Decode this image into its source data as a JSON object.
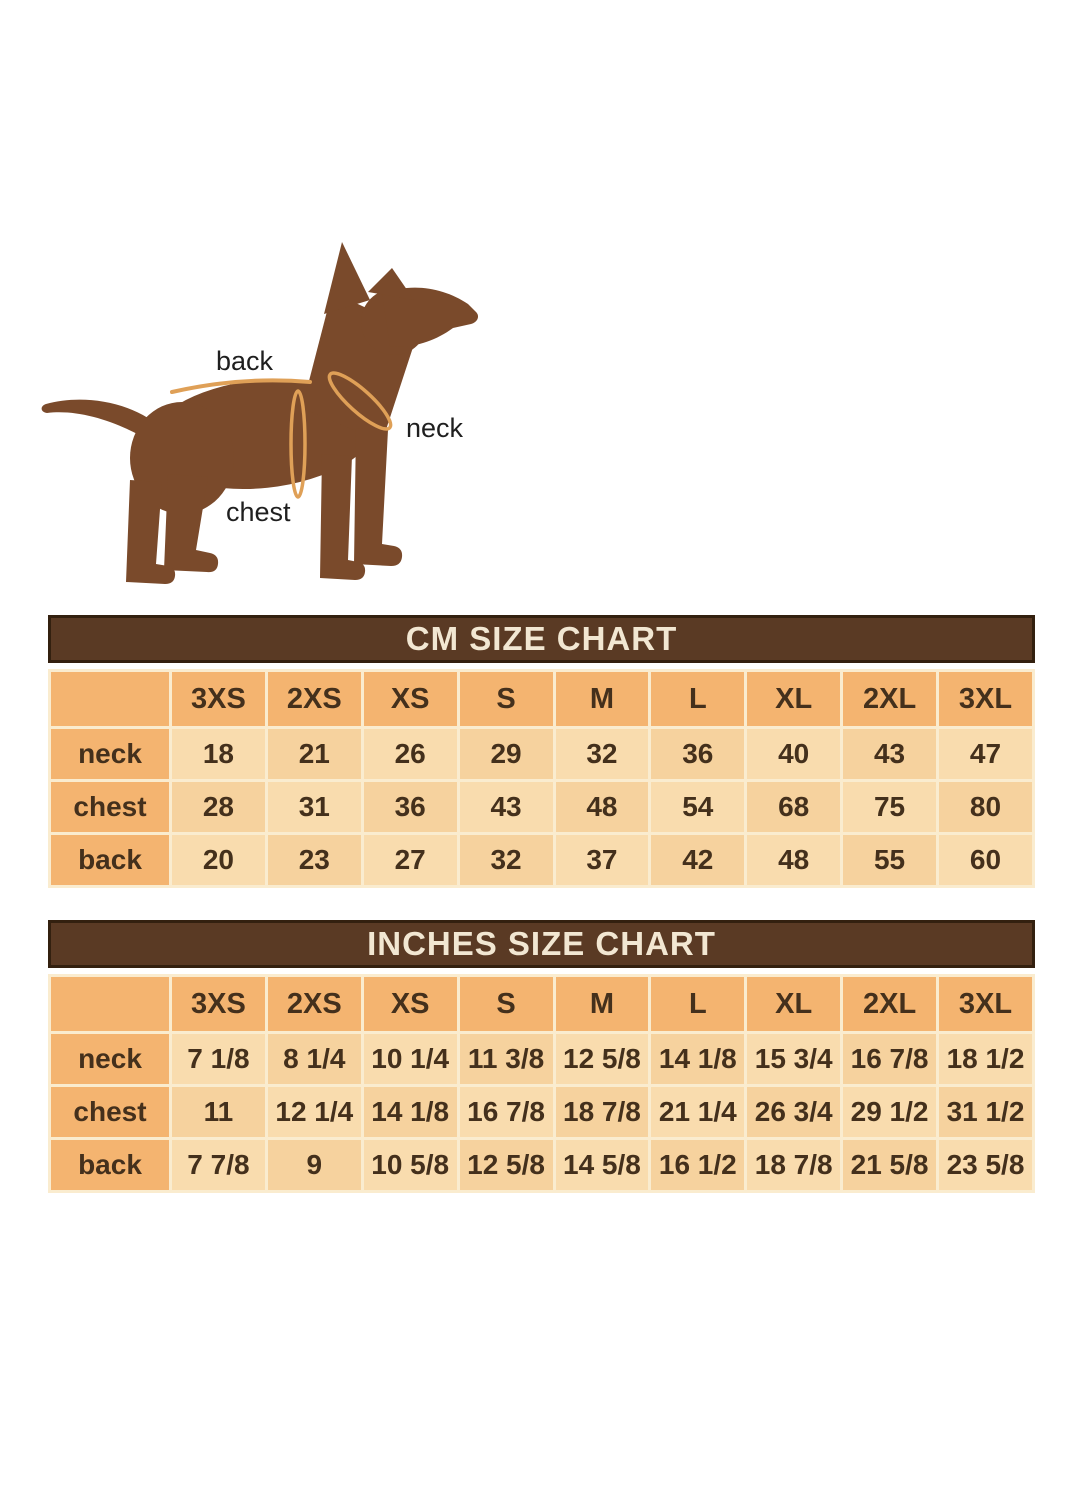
{
  "diagram": {
    "back_label": "back",
    "neck_label": "neck",
    "chest_label": "chest"
  },
  "chart_data": [
    {
      "type": "table",
      "title": "CM SIZE CHART",
      "size_labels": [
        "3XS",
        "2XS",
        "XS",
        "S",
        "M",
        "L",
        "XL",
        "2XL",
        "3XL"
      ],
      "rows": [
        {
          "label": "neck",
          "values": [
            "18",
            "21",
            "26",
            "29",
            "32",
            "36",
            "40",
            "43",
            "47"
          ]
        },
        {
          "label": "chest",
          "values": [
            "28",
            "31",
            "36",
            "43",
            "48",
            "54",
            "68",
            "75",
            "80"
          ]
        },
        {
          "label": "back",
          "values": [
            "20",
            "23",
            "27",
            "32",
            "37",
            "42",
            "48",
            "55",
            "60"
          ]
        }
      ]
    },
    {
      "type": "table",
      "title": "INCHES SIZE CHART",
      "size_labels": [
        "3XS",
        "2XS",
        "XS",
        "S",
        "M",
        "L",
        "XL",
        "2XL",
        "3XL"
      ],
      "rows": [
        {
          "label": "neck",
          "values": [
            "7 1/8",
            "8 1/4",
            "10 1/4",
            "11 3/8",
            "12 5/8",
            "14 1/8",
            "15 3/4",
            "16 7/8",
            "18 1/2"
          ]
        },
        {
          "label": "chest",
          "values": [
            "11",
            "12 1/4",
            "14 1/8",
            "16 7/8",
            "18 7/8",
            "21 1/4",
            "26 3/4",
            "29 1/2",
            "31 1/2"
          ]
        },
        {
          "label": "back",
          "values": [
            "7 7/8",
            "9",
            "10 5/8",
            "12 5/8",
            "14 5/8",
            "16 1/2",
            "18 7/8",
            "21 5/8",
            "23 5/8"
          ]
        }
      ]
    }
  ],
  "colors": {
    "dog_body": "#7a4a2b",
    "measure_line": "#dfa057",
    "band_bg": "#5a3a24",
    "band_text": "#f2e7d2",
    "header_cell_bg": "#f4b470",
    "cell_bg_light": "#f9dcae",
    "cell_bg_dark": "#f6d29e",
    "cell_text": "#44301c",
    "grid_line": "#faeccf",
    "label_text": "#1f1f1f"
  }
}
